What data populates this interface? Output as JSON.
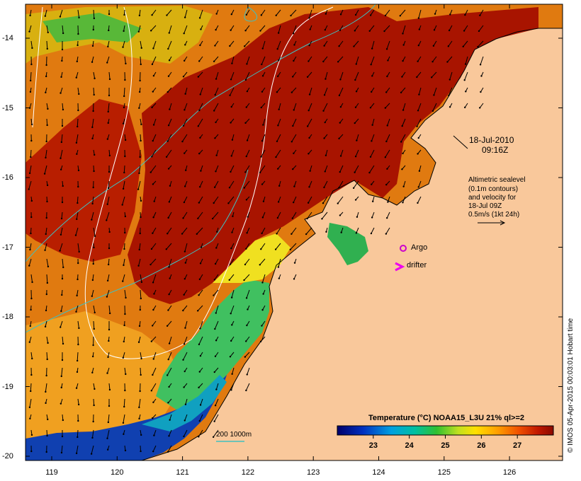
{
  "map": {
    "timestamp_date": "18-Jul-2010",
    "timestamp_time": "09:16Z",
    "altimetry_note": [
      "Altimetric sealevel",
      "(0.1m contours)",
      "and velocity for",
      "18-Jul 09Z",
      "0.5m/s (1kt 24h)"
    ],
    "legend_argo": "Argo",
    "legend_drifter": "drifter",
    "depth_legend": "200  1000m",
    "colorbar_title": "Temperature (°C) NOAA15_L3U 21% ql>=2",
    "colorbar_ticks": [
      "23",
      "24",
      "25",
      "26",
      "27"
    ],
    "colorbar_range": [
      22,
      28
    ],
    "credit": "© IMOS 05-Apr-2015 00:03:01 Hobart time",
    "x_ticks": [
      "119",
      "120",
      "121",
      "122",
      "123",
      "124",
      "125",
      "126"
    ],
    "y_ticks": [
      "-14",
      "-15",
      "-16",
      "-17",
      "-18",
      "-19",
      "-20"
    ],
    "colors": {
      "land": "#f9c89b",
      "argo": "#cc00cc",
      "drifter": "#ee00ee",
      "contour": "#ffffff",
      "isobath": "#40c0c0",
      "hot": "#a81400"
    }
  }
}
